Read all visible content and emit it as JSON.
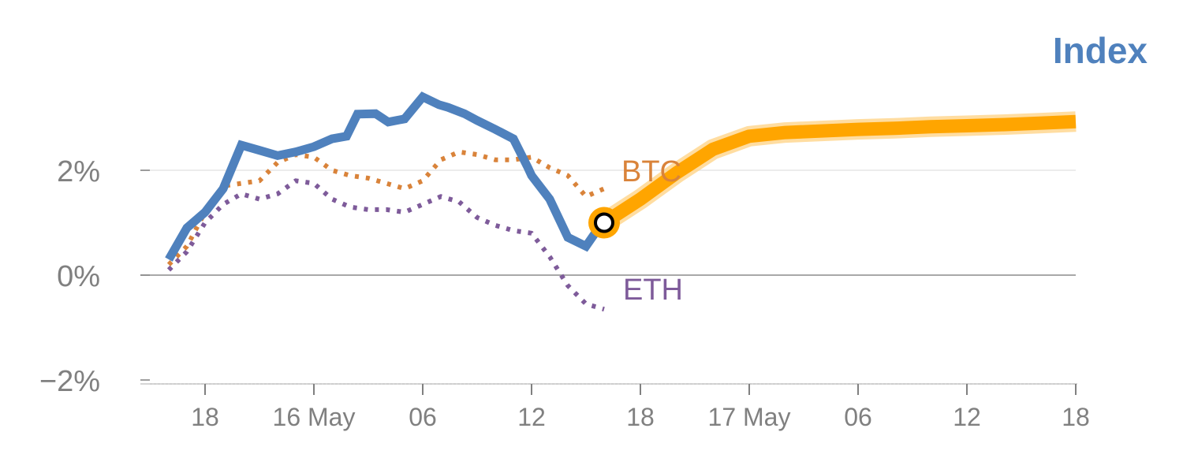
{
  "chart_data": {
    "type": "line",
    "title": "Index",
    "xlabel": "",
    "ylabel": "",
    "ylim": [
      -2,
      3.6
    ],
    "y_unit": "%",
    "xlim": [
      14,
      68
    ],
    "y_ticks": [
      {
        "value": 2,
        "label": "2%"
      },
      {
        "value": 0,
        "label": "0%"
      },
      {
        "value": -2,
        "label": "−2%"
      }
    ],
    "x_ticks": [
      {
        "hour": 18,
        "label": "18"
      },
      {
        "hour": 24,
        "label": "16 May"
      },
      {
        "hour": 30,
        "label": "06"
      },
      {
        "hour": 36,
        "label": "12"
      },
      {
        "hour": 42,
        "label": "18"
      },
      {
        "hour": 48,
        "label": "17 May"
      },
      {
        "hour": 54,
        "label": "06"
      },
      {
        "hour": 60,
        "label": "12"
      },
      {
        "hour": 66,
        "label": "18"
      }
    ],
    "colors": {
      "index": "#4f81bd",
      "btc": "#d9833a",
      "eth": "#7e5b9a",
      "forecast": "#ffa500",
      "forecast_halo": "#ffd48a",
      "zero_line": "#8c8c8c",
      "gridline": "#e6e6e6",
      "axis": "#c8c8c8",
      "ticks": "#808080"
    },
    "series": [
      {
        "name": "Index",
        "style": "solid",
        "x": [
          16,
          17,
          18,
          19,
          20,
          21,
          22,
          23,
          24,
          25,
          25.8,
          26.4,
          27.4,
          28.1,
          29,
          30,
          30.9,
          31.4,
          32.3,
          33,
          34,
          35,
          35.8,
          36,
          37,
          38,
          39,
          39.6,
          40
        ],
        "values": [
          0.3,
          0.9,
          1.2,
          1.65,
          2.48,
          2.38,
          2.28,
          2.35,
          2.45,
          2.6,
          2.65,
          3.07,
          3.08,
          2.92,
          2.98,
          3.4,
          3.25,
          3.2,
          3.08,
          2.95,
          2.78,
          2.6,
          2.05,
          1.9,
          1.45,
          0.72,
          0.55,
          0.85,
          1.0
        ]
      },
      {
        "name": "BTC",
        "style": "dotted",
        "x": [
          16,
          17,
          18,
          19,
          20,
          21,
          22,
          23,
          24,
          25,
          26,
          27,
          28,
          29,
          30,
          31,
          32,
          33,
          34,
          35,
          36,
          37,
          38,
          39,
          40
        ],
        "values": [
          0.2,
          0.55,
          1.2,
          1.7,
          1.75,
          1.8,
          2.15,
          2.3,
          2.25,
          2.0,
          1.9,
          1.85,
          1.75,
          1.65,
          1.8,
          2.2,
          2.35,
          2.3,
          2.2,
          2.2,
          2.25,
          2.05,
          1.9,
          1.5,
          1.65
        ]
      },
      {
        "name": "ETH",
        "style": "dotted",
        "x": [
          16,
          17,
          18,
          19,
          20,
          21,
          22,
          23,
          24,
          25,
          26,
          27,
          28,
          29,
          30,
          31,
          32,
          33,
          34,
          35,
          36,
          37,
          38,
          39,
          40
        ],
        "values": [
          0.1,
          0.45,
          1.0,
          1.35,
          1.55,
          1.45,
          1.55,
          1.8,
          1.75,
          1.45,
          1.3,
          1.25,
          1.25,
          1.2,
          1.35,
          1.5,
          1.4,
          1.1,
          0.95,
          0.85,
          0.8,
          0.35,
          -0.2,
          -0.55,
          -0.65
        ]
      },
      {
        "name": "Index forecast",
        "style": "thick",
        "x": [
          40,
          42,
          44,
          46,
          48,
          50,
          52,
          54,
          56,
          58,
          60,
          62,
          64,
          66
        ],
        "values": [
          1.0,
          1.45,
          1.95,
          2.4,
          2.65,
          2.72,
          2.75,
          2.78,
          2.8,
          2.83,
          2.85,
          2.87,
          2.9,
          2.93
        ]
      }
    ],
    "marker": {
      "x": 40,
      "value": 1.0
    },
    "labels": {
      "btc": "BTC",
      "eth": "ETH"
    }
  }
}
